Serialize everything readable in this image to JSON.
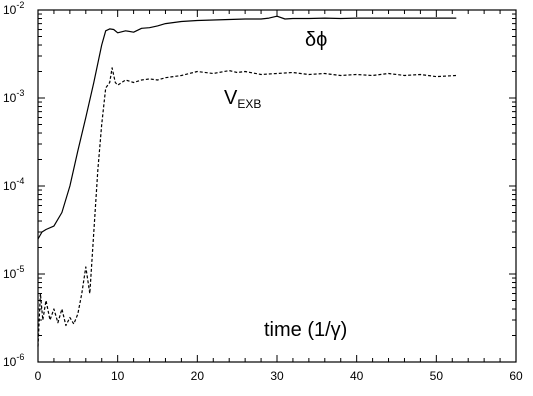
{
  "chart_data": {
    "type": "line",
    "yscale": "log",
    "xlim": [
      0,
      60
    ],
    "ylim": [
      1e-06,
      0.01
    ],
    "grid": false,
    "xlabel": "",
    "ylabel": "",
    "x_ticks": [
      {
        "value": 0,
        "label": "0"
      },
      {
        "value": 10,
        "label": "10"
      },
      {
        "value": 20,
        "label": "20"
      },
      {
        "value": 30,
        "label": "30"
      },
      {
        "value": 40,
        "label": "40"
      },
      {
        "value": 50,
        "label": "50"
      },
      {
        "value": 60,
        "label": "60"
      }
    ],
    "y_ticks": [
      {
        "value": 1e-06,
        "base": "10",
        "exp": "-6"
      },
      {
        "value": 1e-05,
        "base": "10",
        "exp": "-5"
      },
      {
        "value": 0.0001,
        "base": "10",
        "exp": "-4"
      },
      {
        "value": 0.001,
        "base": "10",
        "exp": "-3"
      },
      {
        "value": 0.01,
        "base": "10",
        "exp": "-2"
      }
    ],
    "annotations": {
      "time_label": "time (1/γ)",
      "dphi_label": "δϕ",
      "vexb_main": "V",
      "vexb_sub": "EXB"
    },
    "series": [
      {
        "style": "solid",
        "x": [
          0,
          0.5,
          1,
          2,
          3,
          4,
          5,
          6,
          7,
          8,
          8.5,
          9,
          9.5,
          10,
          11,
          12,
          13,
          14,
          15,
          16,
          18,
          20,
          22,
          24,
          26,
          28,
          29,
          30,
          31,
          32,
          34,
          36,
          38,
          40,
          42,
          44,
          46,
          48,
          50,
          52.5
        ],
        "y": [
          2.5e-05,
          3e-05,
          3.2e-05,
          3.5e-05,
          5e-05,
          0.0001,
          0.00025,
          0.0006,
          0.0015,
          0.004,
          0.0058,
          0.0061,
          0.006,
          0.0055,
          0.0058,
          0.0056,
          0.0062,
          0.0063,
          0.0066,
          0.007,
          0.0074,
          0.0076,
          0.0077,
          0.0078,
          0.0079,
          0.0079,
          0.0081,
          0.0085,
          0.0079,
          0.008,
          0.008,
          0.0081,
          0.008,
          0.0081,
          0.0081,
          0.0081,
          0.0081,
          0.0081,
          0.0081,
          0.0081
        ]
      },
      {
        "style": "dashed",
        "x": [
          0,
          0.3,
          0.6,
          1,
          1.5,
          2,
          2.5,
          3,
          3.5,
          4,
          4.5,
          5,
          5.5,
          6,
          6.5,
          7,
          7.5,
          8,
          8.5,
          9,
          9.3,
          9.7,
          10,
          11,
          12,
          13,
          14,
          15,
          16,
          17,
          18,
          19,
          20,
          22,
          24,
          25,
          26,
          28,
          30,
          32,
          34,
          36,
          38,
          40,
          42,
          44,
          46,
          48,
          50,
          52.5
        ],
        "y": [
          1.5e-06,
          6e-06,
          3e-06,
          5e-06,
          3e-06,
          4e-06,
          2.8e-06,
          4e-06,
          2.6e-06,
          3.2e-06,
          2.7e-06,
          3.5e-06,
          6e-06,
          1.2e-05,
          6e-06,
          3e-05,
          0.00015,
          0.0005,
          0.0013,
          0.0015,
          0.0022,
          0.0015,
          0.0014,
          0.0016,
          0.0015,
          0.0016,
          0.00165,
          0.0016,
          0.0017,
          0.00175,
          0.0018,
          0.0019,
          0.002,
          0.0019,
          0.00205,
          0.00195,
          0.002,
          0.00185,
          0.0019,
          0.00195,
          0.00185,
          0.0019,
          0.0018,
          0.00185,
          0.0018,
          0.0019,
          0.0018,
          0.00185,
          0.00175,
          0.0018
        ]
      }
    ]
  }
}
